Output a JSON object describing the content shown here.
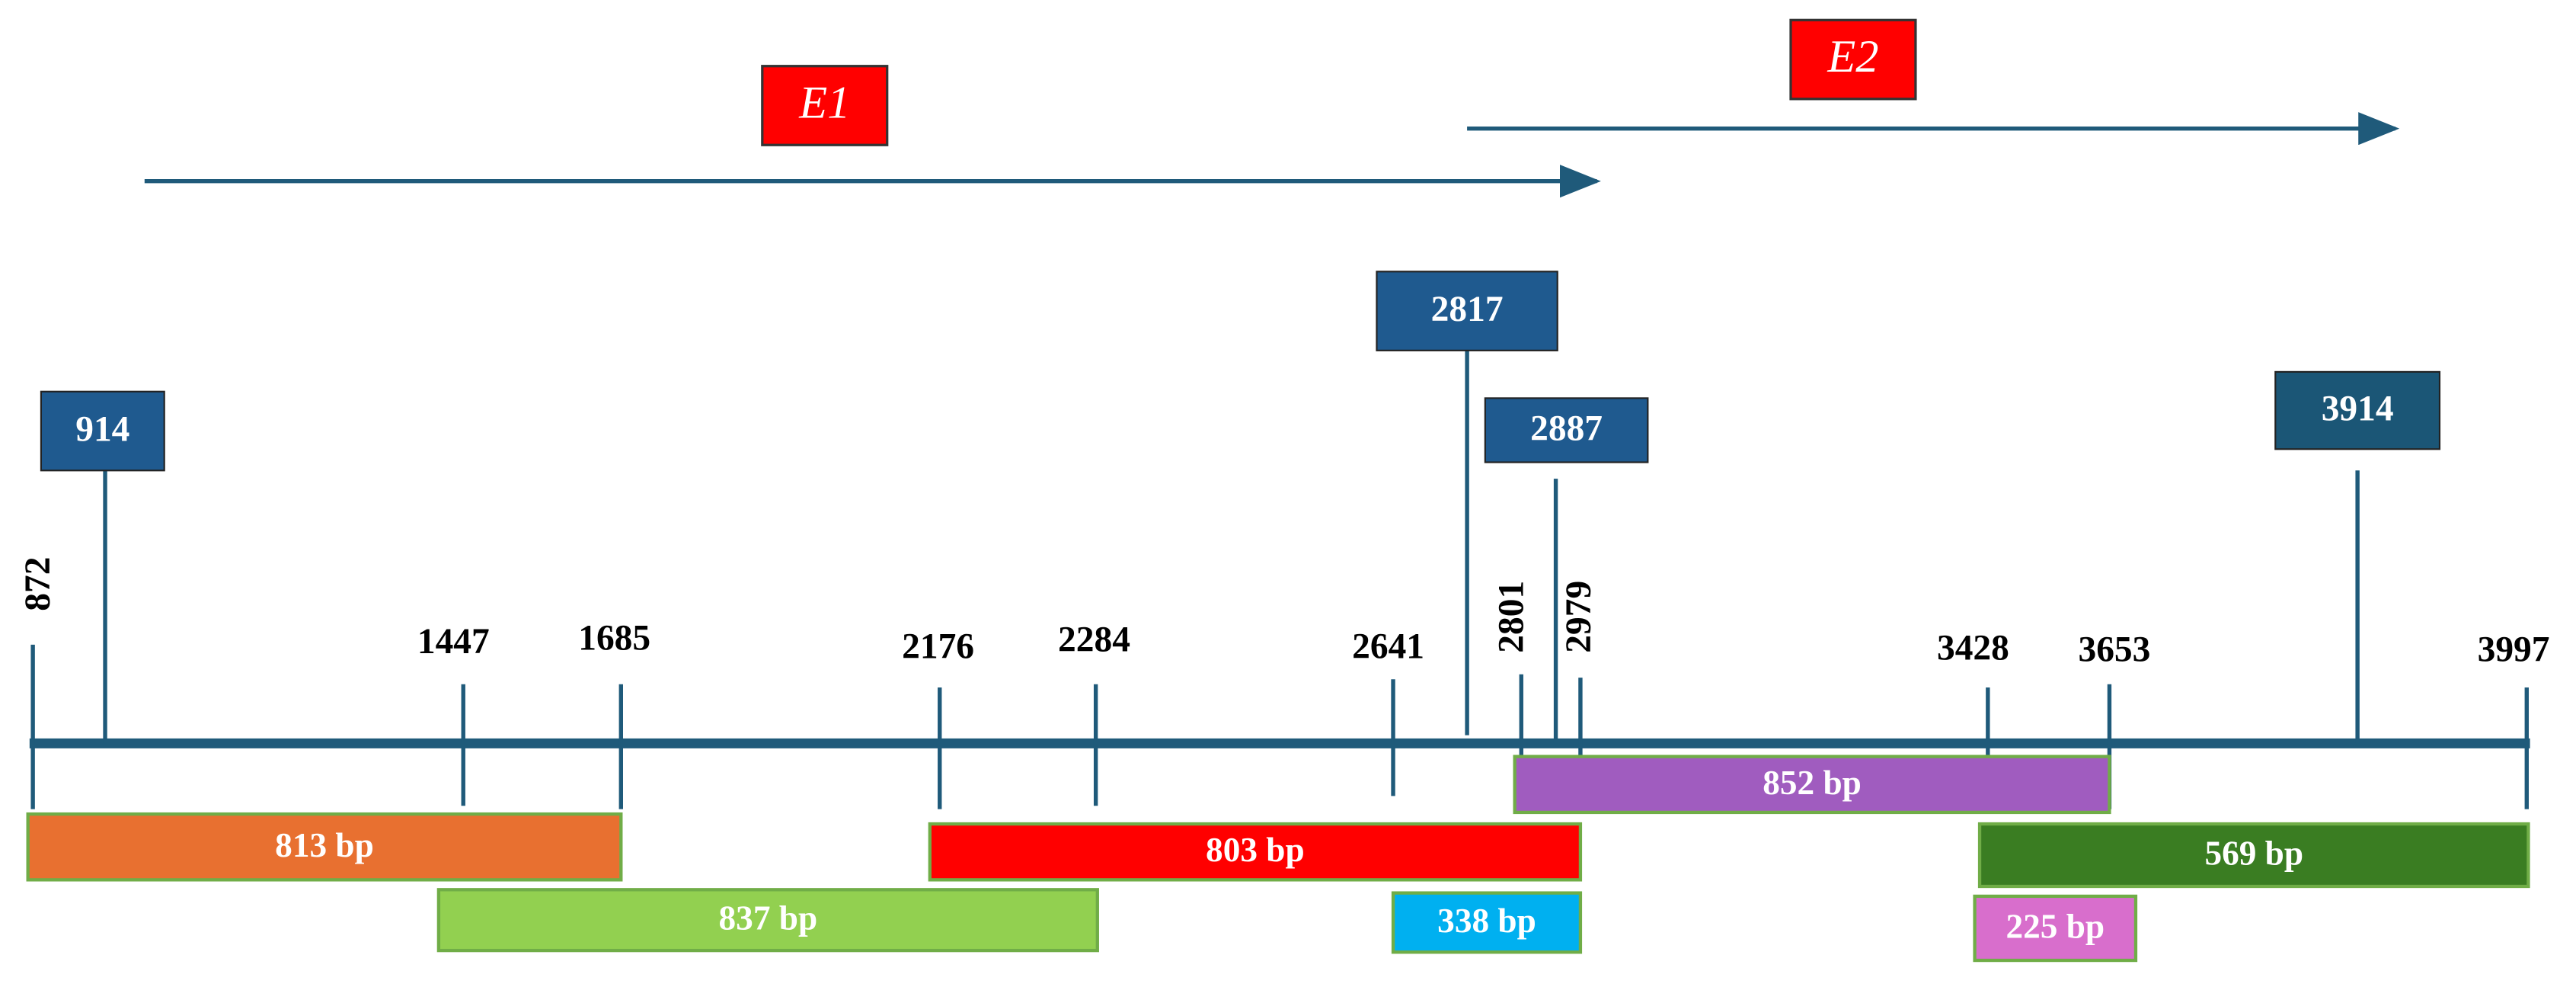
{
  "genes": [
    {
      "label": "E1"
    },
    {
      "label": "E2"
    }
  ],
  "markers": [
    {
      "label": "914"
    },
    {
      "label": "2817"
    },
    {
      "label": "2887"
    },
    {
      "label": "3914"
    }
  ],
  "ticks": [
    {
      "label": "872"
    },
    {
      "label": "1447"
    },
    {
      "label": "1685"
    },
    {
      "label": "2176"
    },
    {
      "label": "2284"
    },
    {
      "label": "2641"
    },
    {
      "label": "2801"
    },
    {
      "label": "2979"
    },
    {
      "label": "3428"
    },
    {
      "label": "3653"
    },
    {
      "label": "3997"
    }
  ],
  "fragments": [
    {
      "label": "813 bp"
    },
    {
      "label": "837 bp"
    },
    {
      "label": "803 bp"
    },
    {
      "label": "338 bp"
    },
    {
      "label": "852 bp"
    },
    {
      "label": "569 bp"
    },
    {
      "label": "225 bp"
    }
  ]
}
